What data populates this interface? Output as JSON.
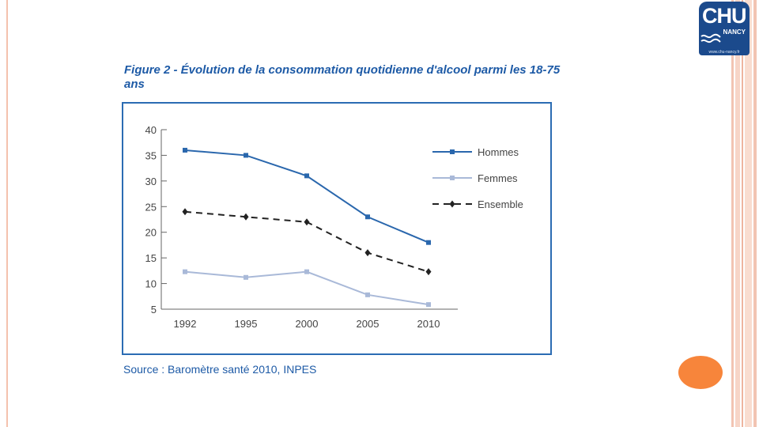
{
  "figure_title": "Figure 2 - Évolution de la consommation quotidienne d'alcool parmi les 18-75 ans",
  "source": "Source : Baromètre santé 2010, INPES",
  "logo": {
    "name": "CHU",
    "sub": "NANCY",
    "url": "www.chu-nancy.fr"
  },
  "colors": {
    "title": "#1d5aa6",
    "frame": "#2b6cb3",
    "hommes": "#2a67ad",
    "femmes": "#a9b9d8",
    "ensemble": "#222222",
    "accent": "#f7853b",
    "logo": "#1b4a8c"
  },
  "chart_data": {
    "type": "line",
    "title": "Figure 2 - Évolution de la consommation quotidienne d'alcool parmi les 18-75 ans",
    "xlabel": "",
    "ylabel": "",
    "categories": [
      "1992",
      "1995",
      "2000",
      "2005",
      "2010"
    ],
    "ylim": [
      5,
      40
    ],
    "yticks": [
      40,
      35,
      30,
      25,
      20,
      15,
      10,
      5
    ],
    "legend_position": "right",
    "series": [
      {
        "name": "Hommes",
        "values": [
          36,
          35,
          31,
          23,
          18
        ],
        "style": "solid",
        "marker": "square",
        "color": "#2a67ad"
      },
      {
        "name": "Femmes",
        "values": [
          12.3,
          11.2,
          12.3,
          7.8,
          5.9
        ],
        "style": "solid",
        "marker": "square",
        "color": "#a9b9d8"
      },
      {
        "name": "Ensemble",
        "values": [
          24,
          23,
          22,
          16,
          12.3
        ],
        "style": "dashed",
        "marker": "diamond",
        "color": "#222222"
      }
    ]
  }
}
